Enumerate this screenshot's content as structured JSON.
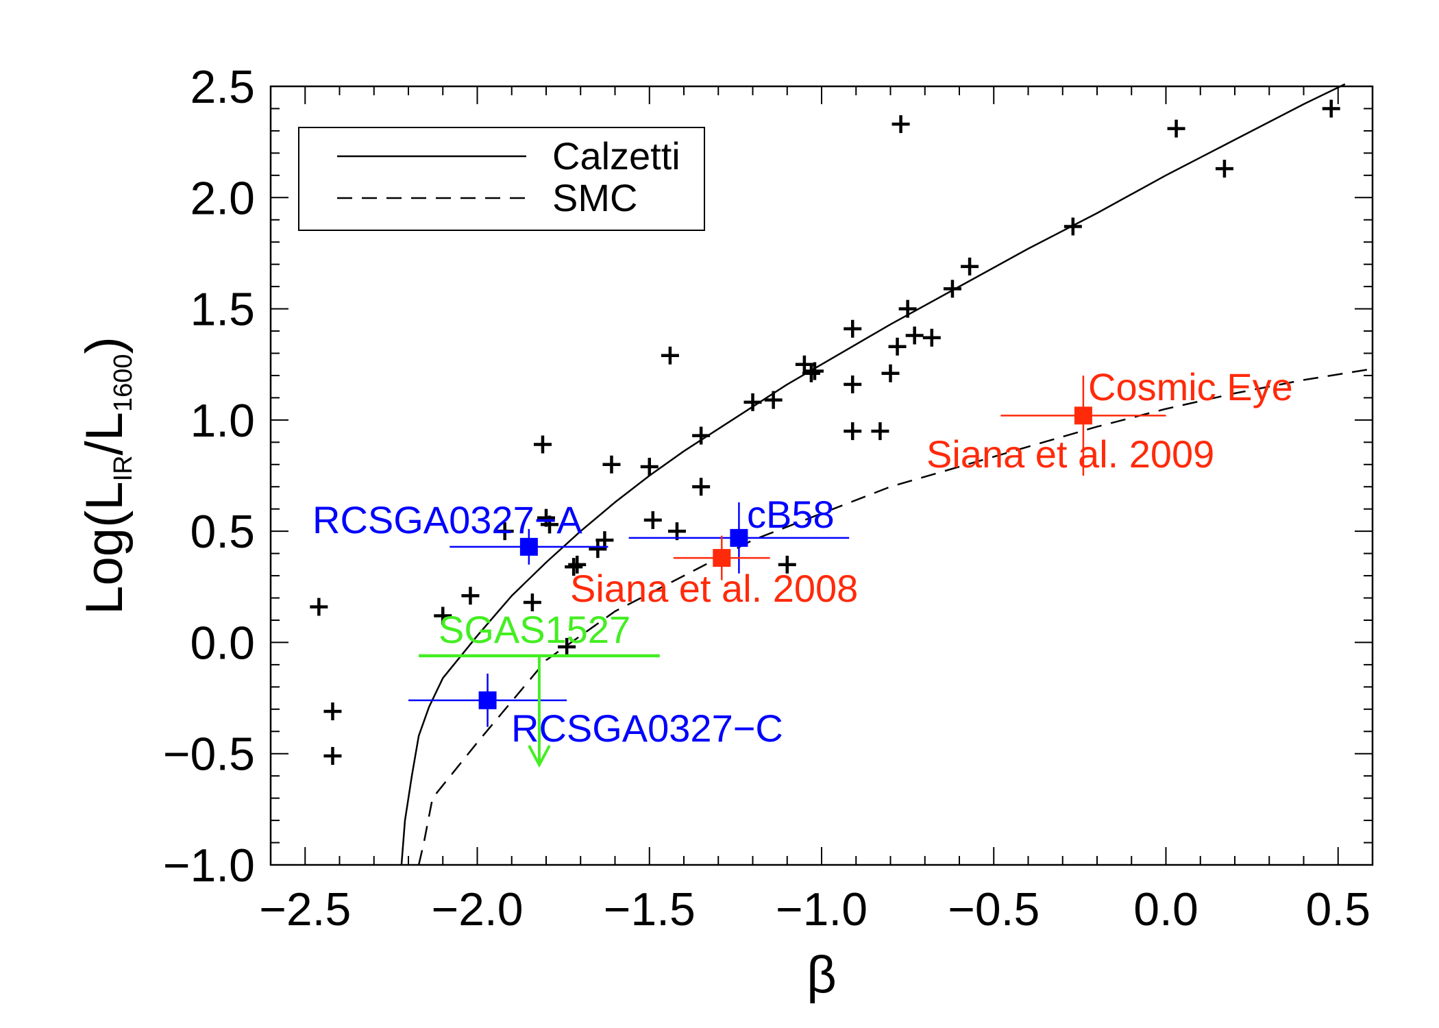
{
  "chart_data": {
    "type": "scatter",
    "title": "",
    "xlabel": "β",
    "ylabel": {
      "prefix": "Log(L",
      "sub1": "IR",
      "mid": "/L",
      "sub2": "1600",
      "suffix": ")"
    },
    "xlim": [
      -2.6,
      0.6
    ],
    "ylim": [
      -1.0,
      2.5
    ],
    "xticks": [
      -2.5,
      -2.0,
      -1.5,
      -1.0,
      -0.5,
      0.0,
      0.5
    ],
    "xtick_labels": [
      "−2.5",
      "−2.0",
      "−1.5",
      "−1.0",
      "−0.5",
      "0.0",
      "0.5"
    ],
    "yticks": [
      -1.0,
      -0.5,
      0.0,
      0.5,
      1.0,
      1.5,
      2.0,
      2.5
    ],
    "ytick_labels": [
      "−1.0",
      "−0.5",
      "0.0",
      "0.5",
      "1.0",
      "1.5",
      "2.0",
      "2.5"
    ],
    "legend": {
      "position": "top-left",
      "entries": [
        {
          "label": "Calzetti",
          "style": "solid"
        },
        {
          "label": "SMC",
          "style": "dashed"
        }
      ]
    },
    "curves": [
      {
        "name": "Calzetti",
        "style": "solid",
        "color": "#000000",
        "points": [
          [
            -2.22,
            -1.0
          ],
          [
            -2.21,
            -0.8
          ],
          [
            -2.19,
            -0.6
          ],
          [
            -2.17,
            -0.42
          ],
          [
            -2.14,
            -0.29
          ],
          [
            -2.1,
            -0.16
          ],
          [
            -2.0,
            0.03
          ],
          [
            -1.9,
            0.21
          ],
          [
            -1.8,
            0.36
          ],
          [
            -1.7,
            0.5
          ],
          [
            -1.6,
            0.63
          ],
          [
            -1.5,
            0.75
          ],
          [
            -1.4,
            0.86
          ],
          [
            -1.3,
            0.96
          ],
          [
            -1.2,
            1.06
          ],
          [
            -1.1,
            1.16
          ],
          [
            -1.0,
            1.25
          ],
          [
            -0.8,
            1.43
          ],
          [
            -0.6,
            1.6
          ],
          [
            -0.4,
            1.77
          ],
          [
            -0.2,
            1.93
          ],
          [
            0.0,
            2.1
          ],
          [
            0.2,
            2.26
          ],
          [
            0.4,
            2.42
          ],
          [
            0.52,
            2.51
          ]
        ]
      },
      {
        "name": "SMC",
        "style": "dashed",
        "color": "#000000",
        "points": [
          [
            -2.17,
            -1.0
          ],
          [
            -2.155,
            -0.9
          ],
          [
            -2.13,
            -0.7
          ],
          [
            -2.0,
            -0.45
          ],
          [
            -1.8,
            -0.08
          ],
          [
            -1.6,
            0.14
          ],
          [
            -1.4,
            0.3
          ],
          [
            -1.2,
            0.46
          ],
          [
            -1.0,
            0.58
          ],
          [
            -0.8,
            0.7
          ],
          [
            -0.6,
            0.79
          ],
          [
            -0.4,
            0.88
          ],
          [
            -0.2,
            0.97
          ],
          [
            0.0,
            1.05
          ],
          [
            0.2,
            1.12
          ],
          [
            0.4,
            1.18
          ],
          [
            0.6,
            1.23
          ]
        ]
      }
    ],
    "plus_markers": [
      [
        -2.46,
        0.16
      ],
      [
        -2.42,
        -0.31
      ],
      [
        -2.42,
        -0.51
      ],
      [
        -2.1,
        0.12
      ],
      [
        -2.02,
        0.21
      ],
      [
        -1.92,
        0.5
      ],
      [
        -1.84,
        0.18
      ],
      [
        -1.81,
        0.89
      ],
      [
        -1.8,
        0.56
      ],
      [
        -1.79,
        0.53
      ],
      [
        -1.74,
        -0.02
      ],
      [
        -1.72,
        0.34
      ],
      [
        -1.71,
        0.35
      ],
      [
        -1.65,
        0.42
      ],
      [
        -1.63,
        0.46
      ],
      [
        -1.61,
        0.8
      ],
      [
        -1.5,
        0.79
      ],
      [
        -1.49,
        0.55
      ],
      [
        -1.44,
        1.29
      ],
      [
        -1.42,
        0.5
      ],
      [
        -1.35,
        0.93
      ],
      [
        -1.35,
        0.7
      ],
      [
        -1.2,
        1.08
      ],
      [
        -1.14,
        1.09
      ],
      [
        -1.1,
        0.35
      ],
      [
        -1.05,
        1.25
      ],
      [
        -1.03,
        1.21
      ],
      [
        -1.02,
        1.22
      ],
      [
        -0.91,
        1.41
      ],
      [
        -0.91,
        1.16
      ],
      [
        -0.91,
        0.95
      ],
      [
        -0.83,
        0.95
      ],
      [
        -0.8,
        1.21
      ],
      [
        -0.78,
        1.33
      ],
      [
        -0.77,
        2.33
      ],
      [
        -0.75,
        1.5
      ],
      [
        -0.73,
        1.38
      ],
      [
        -0.68,
        1.37
      ],
      [
        -0.62,
        1.59
      ],
      [
        -0.57,
        1.69
      ],
      [
        -0.27,
        1.87
      ],
      [
        0.03,
        2.31
      ],
      [
        0.17,
        2.13
      ],
      [
        0.48,
        2.4
      ]
    ],
    "highlighted_points": [
      {
        "label": "RCSGA0327−A",
        "x": -1.85,
        "y": 0.43,
        "xerr": [
          0.23,
          0.23
        ],
        "yerr": [
          0.08,
          0.08
        ],
        "color": "#0000ff"
      },
      {
        "label": "RCSGA0327−C",
        "x": -1.97,
        "y": -0.26,
        "xerr": [
          0.23,
          0.23
        ],
        "yerr": [
          0.12,
          0.12
        ],
        "color": "#0000ff"
      },
      {
        "label": "cB58",
        "x": -1.24,
        "y": 0.47,
        "xerr": [
          0.32,
          0.32
        ],
        "yerr": [
          0.16,
          0.16
        ],
        "color": "#0000ff"
      },
      {
        "label": "Siana et al. 2008",
        "x": -1.29,
        "y": 0.38,
        "xerr": [
          0.14,
          0.14
        ],
        "yerr": [
          0.1,
          0.1
        ],
        "color": "#ff2a0a"
      },
      {
        "label": "Cosmic Eye",
        "label2": "Siana et al. 2009",
        "x": -0.24,
        "y": 1.02,
        "xerr": [
          0.24,
          0.24
        ],
        "yerr": [
          0.27,
          0.18
        ],
        "color": "#ff2a0a"
      },
      {
        "label": "SGAS1527",
        "upper_limit": true,
        "x": -1.82,
        "y": -0.06,
        "xrange": [
          -2.17,
          -1.47
        ],
        "arrow_to": -0.55,
        "color": "#44ee22"
      }
    ]
  }
}
